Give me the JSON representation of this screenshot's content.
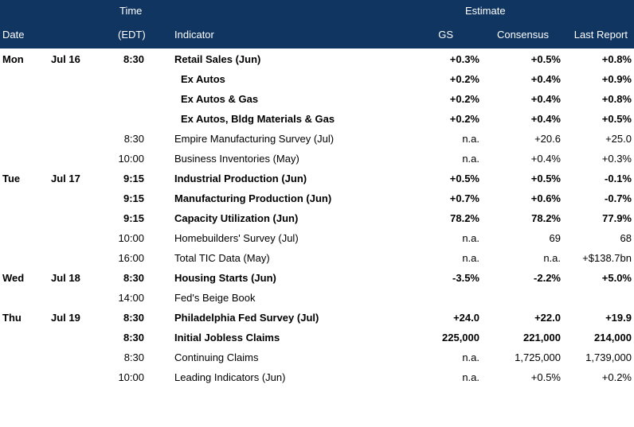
{
  "header": {
    "time_top": "Time",
    "estimate": "Estimate",
    "date": "Date",
    "time_zone": "(EDT)",
    "indicator": "Indicator",
    "gs": "GS",
    "consensus": "Consensus",
    "last_report": "Last Report"
  },
  "rows": [
    {
      "day": "Mon",
      "date": "Jul 16",
      "time": "8:30",
      "indicator": "Retail Sales (Jun)",
      "gs": "+0.3%",
      "consensus": "+0.5%",
      "last": "+0.8%"
    },
    {
      "day": "",
      "date": "",
      "time": "",
      "indicator": "Ex Autos",
      "gs": "+0.2%",
      "consensus": "+0.4%",
      "last": "+0.9%"
    },
    {
      "day": "",
      "date": "",
      "time": "",
      "indicator": "Ex Autos & Gas",
      "gs": "+0.2%",
      "consensus": "+0.4%",
      "last": "+0.8%"
    },
    {
      "day": "",
      "date": "",
      "time": "",
      "indicator": "Ex Autos, Bldg Materials & Gas",
      "gs": "+0.2%",
      "consensus": "+0.4%",
      "last": "+0.5%"
    },
    {
      "day": "",
      "date": "",
      "time": "8:30",
      "indicator": "Empire Manufacturing Survey (Jul)",
      "gs": "n.a.",
      "consensus": "+20.6",
      "last": "+25.0"
    },
    {
      "day": "",
      "date": "",
      "time": "10:00",
      "indicator": "Business Inventories (May)",
      "gs": "n.a.",
      "consensus": "+0.4%",
      "last": "+0.3%"
    },
    {
      "day": "Tue",
      "date": "Jul 17",
      "time": "9:15",
      "indicator": "Industrial Production (Jun)",
      "gs": "+0.5%",
      "consensus": "+0.5%",
      "last": "-0.1%"
    },
    {
      "day": "",
      "date": "",
      "time": "9:15",
      "indicator": "Manufacturing Production (Jun)",
      "gs": "+0.7%",
      "consensus": "+0.6%",
      "last": "-0.7%"
    },
    {
      "day": "",
      "date": "",
      "time": "9:15",
      "indicator": "Capacity Utilization (Jun)",
      "gs": "78.2%",
      "consensus": "78.2%",
      "last": "77.9%"
    },
    {
      "day": "",
      "date": "",
      "time": "10:00",
      "indicator": "Homebuilders' Survey (Jul)",
      "gs": "n.a.",
      "consensus": "69",
      "last": "68"
    },
    {
      "day": "",
      "date": "",
      "time": "16:00",
      "indicator": "Total TIC Data (May)",
      "gs": "n.a.",
      "consensus": "n.a.",
      "last": "+$138.7bn"
    },
    {
      "day": "Wed",
      "date": "Jul 18",
      "time": "8:30",
      "indicator": "Housing Starts (Jun)",
      "gs": "-3.5%",
      "consensus": "-2.2%",
      "last": "+5.0%"
    },
    {
      "day": "",
      "date": "",
      "time": "14:00",
      "indicator": "Fed's Beige Book",
      "gs": "",
      "consensus": "",
      "last": ""
    },
    {
      "day": "Thu",
      "date": "Jul 19",
      "time": "8:30",
      "indicator": "Philadelphia Fed Survey (Jul)",
      "gs": "+24.0",
      "consensus": "+22.0",
      "last": "+19.9"
    },
    {
      "day": "",
      "date": "",
      "time": "8:30",
      "indicator": "Initial Jobless Claims",
      "gs": "225,000",
      "consensus": "221,000",
      "last": "214,000"
    },
    {
      "day": "",
      "date": "",
      "time": "8:30",
      "indicator": "Continuing Claims",
      "gs": "n.a.",
      "consensus": "1,725,000",
      "last": "1,739,000"
    },
    {
      "day": "",
      "date": "",
      "time": "10:00",
      "indicator": "Leading Indicators (Jun)",
      "gs": "n.a.",
      "consensus": "+0.5%",
      "last": "+0.2%"
    }
  ]
}
